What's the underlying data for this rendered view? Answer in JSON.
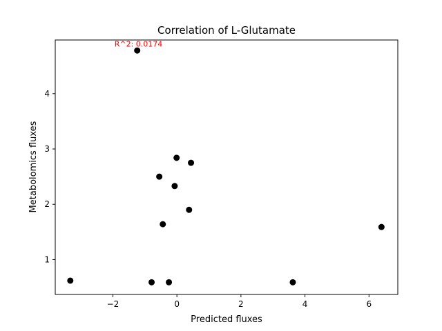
{
  "chart_data": {
    "type": "scatter",
    "title": "Correlation of L-Glutamate",
    "xlabel": "Predicted fluxes",
    "ylabel": "Metabolomics fluxes",
    "xlim": [
      -3.8,
      6.9
    ],
    "ylim": [
      0.37,
      4.97
    ],
    "xticks": [
      -2,
      0,
      2,
      4,
      6
    ],
    "xtick_labels": [
      "−2",
      "0",
      "2",
      "4",
      "6"
    ],
    "yticks": [
      1,
      2,
      3,
      4
    ],
    "ytick_labels": [
      "1",
      "2",
      "3",
      "4"
    ],
    "grid": false,
    "annotation": {
      "text": "R^2: 0.0174",
      "x": -1.2,
      "y": 4.85,
      "color": "#ff0000"
    },
    "marker_color": "#000000",
    "series": [
      {
        "x": [
          -1.24,
          -0.01,
          0.44,
          -0.55,
          -0.07,
          0.38,
          -0.44,
          6.39,
          -3.33,
          -0.79,
          -0.25,
          3.62
        ],
        "y": [
          4.78,
          2.84,
          2.75,
          2.5,
          2.33,
          1.9,
          1.64,
          1.59,
          0.62,
          0.59,
          0.59,
          0.59
        ]
      }
    ]
  }
}
